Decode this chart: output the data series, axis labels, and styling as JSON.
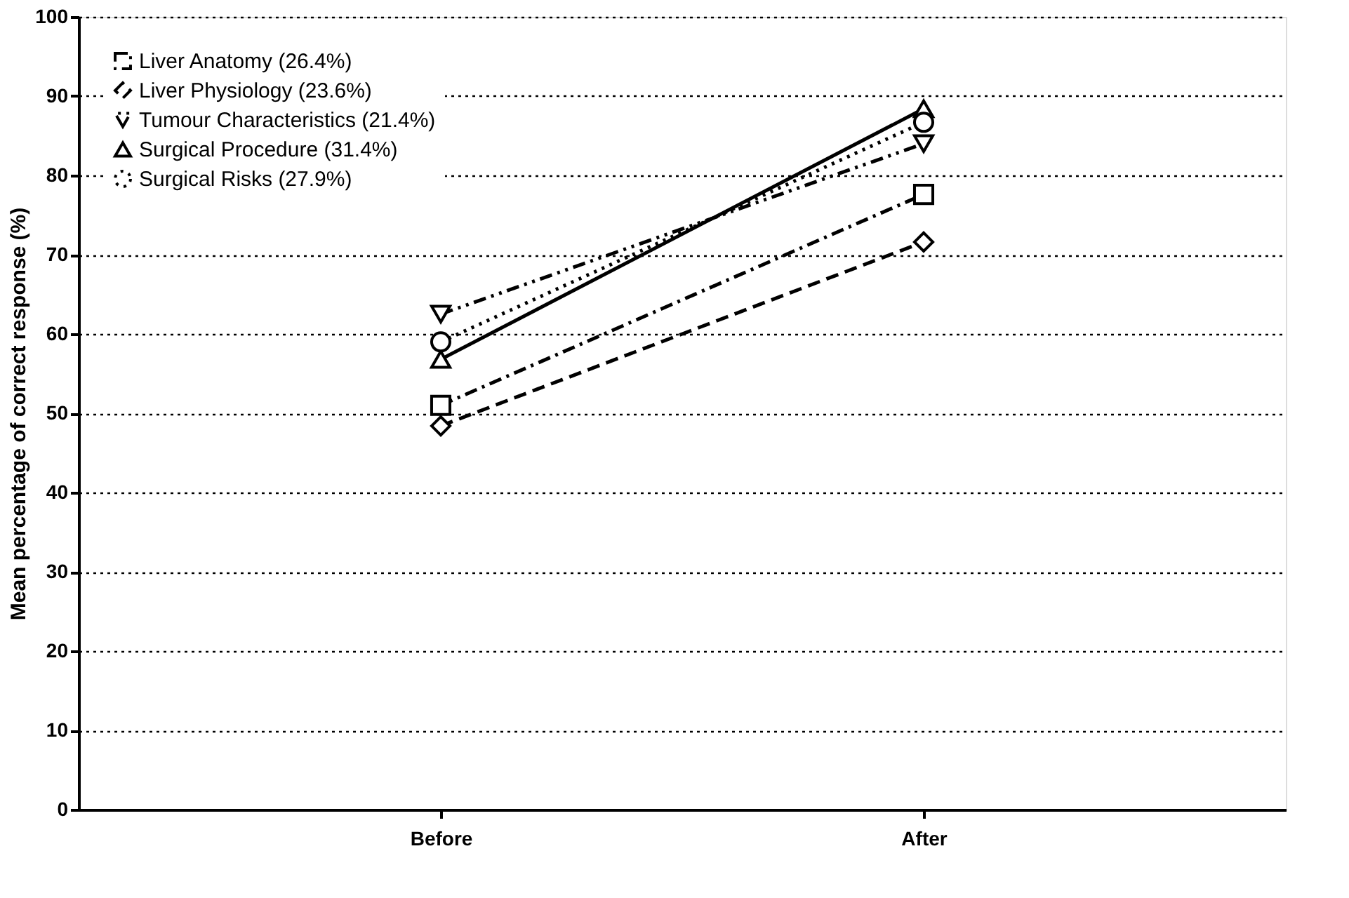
{
  "chart_data": {
    "type": "line",
    "ylabel": "Mean percentage of correct response (%)",
    "categories": [
      "Before",
      "After"
    ],
    "ylim": [
      0,
      100
    ],
    "yticks": [
      0,
      10,
      20,
      30,
      40,
      50,
      60,
      70,
      80,
      90,
      100
    ],
    "grid": "y",
    "legend": "top left",
    "series": [
      {
        "name": "Liver Anatomy (26.4%)",
        "color": "#000000",
        "values": [
          51.0,
          77.6
        ],
        "marker": "square",
        "line_style": "dashdot"
      },
      {
        "name": "Liver Physiology (23.6%)",
        "color": "#000000",
        "values": [
          48.4,
          71.6
        ],
        "marker": "diamond",
        "line_style": "dashed"
      },
      {
        "name": "Tumour Characteristics (21.4%)",
        "color": "#000000",
        "values": [
          62.5,
          84.0
        ],
        "marker": "triangle-down",
        "line_style": "dashdotdot"
      },
      {
        "name": "Surgical Procedure (31.4%)",
        "color": "#000000",
        "values": [
          56.8,
          88.4
        ],
        "marker": "triangle-up",
        "line_style": "solid"
      },
      {
        "name": "Surgical Risks (27.9%)",
        "color": "#000000",
        "values": [
          59.0,
          86.7
        ],
        "marker": "circle",
        "line_style": "dotted"
      }
    ]
  }
}
